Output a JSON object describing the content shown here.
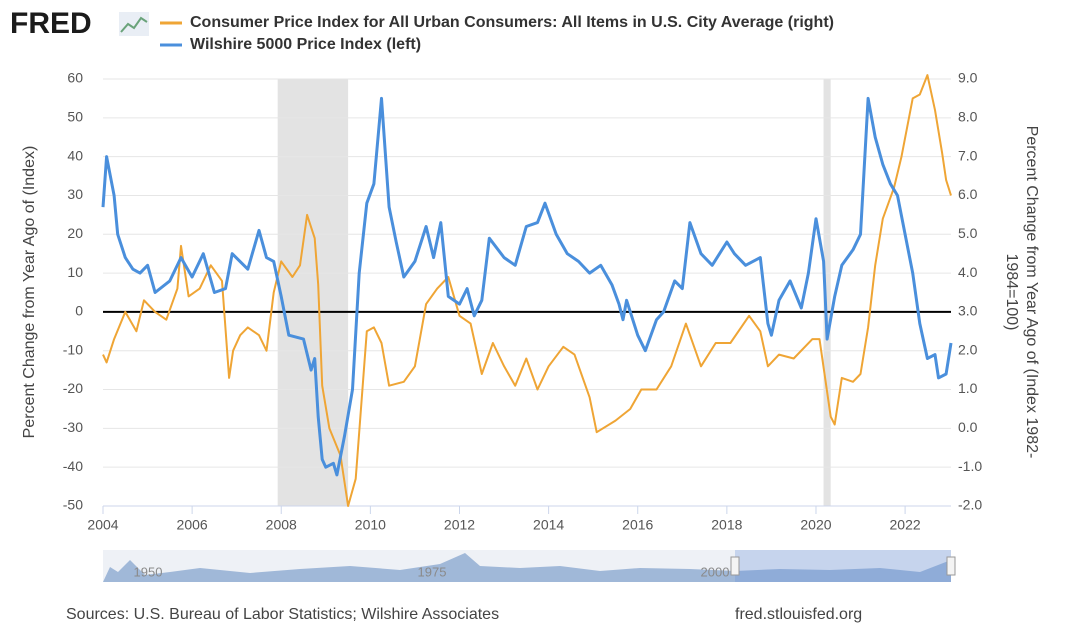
{
  "logo": "FRED",
  "chart_data": {
    "type": "line",
    "ylabel": "Percent Change from Year Ago of (Index)",
    "y2label": [
      "Percent Change from Year Ago of (Index 1982-",
      "1984=100)"
    ],
    "xlim": [
      2004,
      2023.03
    ],
    "xticks": [
      2004,
      2006,
      2008,
      2010,
      2012,
      2014,
      2016,
      2018,
      2020,
      2022
    ],
    "ylim": [
      -50,
      60
    ],
    "yticks": [
      -50,
      -40,
      -30,
      -20,
      -10,
      0,
      10,
      20,
      30,
      40,
      50,
      60
    ],
    "y2lim": [
      -2,
      9
    ],
    "y2ticks": [
      {
        "value": -2,
        "label": "-2.0"
      },
      {
        "value": -1,
        "label": "-1.0"
      },
      {
        "value": 0,
        "label": "0.0"
      },
      {
        "value": 1,
        "label": "1.0"
      },
      {
        "value": 2,
        "label": "2.0"
      },
      {
        "value": 3,
        "label": "3.0"
      },
      {
        "value": 4,
        "label": "4.0"
      },
      {
        "value": 5,
        "label": "5.0"
      },
      {
        "value": 6,
        "label": "6.0"
      },
      {
        "value": 7,
        "label": "7.0"
      },
      {
        "value": 8,
        "label": "8.0"
      },
      {
        "value": 9,
        "label": "9.0"
      }
    ],
    "grid": true,
    "zero_line": true,
    "shaded_periods": [
      [
        2007.92,
        2009.5
      ],
      [
        2020.17,
        2020.33
      ]
    ],
    "series": [
      {
        "name": "Consumer Price Index for All Urban Consumers: All Items in U.S. City Average (right)",
        "color": "#efa535",
        "axis": "y2",
        "x": [
          2004.0,
          2004.08,
          2004.25,
          2004.5,
          2004.75,
          2004.92,
          2005.17,
          2005.42,
          2005.67,
          2005.75,
          2005.92,
          2006.17,
          2006.42,
          2006.67,
          2006.83,
          2006.92,
          2007.08,
          2007.25,
          2007.5,
          2007.67,
          2007.83,
          2008.0,
          2008.25,
          2008.42,
          2008.58,
          2008.75,
          2008.83,
          2008.92,
          2009.08,
          2009.33,
          2009.5,
          2009.67,
          2009.92,
          2010.08,
          2010.25,
          2010.42,
          2010.75,
          2011.0,
          2011.25,
          2011.5,
          2011.75,
          2012.0,
          2012.25,
          2012.5,
          2012.75,
          2013.0,
          2013.25,
          2013.5,
          2013.75,
          2014.0,
          2014.33,
          2014.58,
          2014.92,
          2015.08,
          2015.5,
          2015.83,
          2016.08,
          2016.42,
          2016.75,
          2017.08,
          2017.42,
          2017.75,
          2018.08,
          2018.5,
          2018.75,
          2018.92,
          2019.17,
          2019.5,
          2019.92,
          2020.08,
          2020.33,
          2020.42,
          2020.58,
          2020.83,
          2021.0,
          2021.17,
          2021.33,
          2021.5,
          2021.75,
          2021.92,
          2022.17,
          2022.33,
          2022.5,
          2022.67,
          2022.83,
          2022.92,
          2023.03
        ],
        "values": [
          1.9,
          1.7,
          2.3,
          3.0,
          2.5,
          3.3,
          3.0,
          2.8,
          3.6,
          4.7,
          3.4,
          3.6,
          4.2,
          3.8,
          1.3,
          2.0,
          2.4,
          2.6,
          2.4,
          2.0,
          3.5,
          4.3,
          3.9,
          4.2,
          5.5,
          4.9,
          3.7,
          1.1,
          0.0,
          -0.7,
          -2.0,
          -1.3,
          2.5,
          2.6,
          2.2,
          1.1,
          1.2,
          1.6,
          3.2,
          3.6,
          3.9,
          2.9,
          2.7,
          1.4,
          2.2,
          1.6,
          1.1,
          1.8,
          1.0,
          1.6,
          2.1,
          1.9,
          0.8,
          -0.1,
          0.2,
          0.5,
          1.0,
          1.0,
          1.6,
          2.7,
          1.6,
          2.2,
          2.2,
          2.9,
          2.5,
          1.6,
          1.9,
          1.8,
          2.3,
          2.3,
          0.3,
          0.1,
          1.3,
          1.2,
          1.4,
          2.6,
          4.2,
          5.4,
          6.2,
          7.0,
          8.5,
          8.6,
          9.1,
          8.2,
          7.1,
          6.4,
          6.0
        ]
      },
      {
        "name": "Wilshire 5000 Price Index (left)",
        "color": "#4a8fdc",
        "x": [
          2004.0,
          2004.08,
          2004.25,
          2004.33,
          2004.5,
          2004.67,
          2004.83,
          2005.0,
          2005.17,
          2005.5,
          2005.75,
          2006.0,
          2006.25,
          2006.5,
          2006.75,
          2006.9,
          2007.25,
          2007.5,
          2007.67,
          2007.83,
          2008.0,
          2008.17,
          2008.5,
          2008.67,
          2008.75,
          2008.83,
          2008.92,
          2009.0,
          2009.17,
          2009.25,
          2009.42,
          2009.6,
          2009.75,
          2009.92,
          2010.08,
          2010.25,
          2010.42,
          2010.58,
          2010.75,
          2011.0,
          2011.25,
          2011.42,
          2011.58,
          2011.75,
          2012.0,
          2012.17,
          2012.33,
          2012.5,
          2012.67,
          2013.0,
          2013.25,
          2013.5,
          2013.75,
          2013.92,
          2014.17,
          2014.42,
          2014.67,
          2014.92,
          2015.17,
          2015.42,
          2015.58,
          2015.67,
          2015.75,
          2016.0,
          2016.17,
          2016.42,
          2016.58,
          2016.83,
          2017.0,
          2017.17,
          2017.42,
          2017.67,
          2018.0,
          2018.17,
          2018.42,
          2018.75,
          2018.92,
          2019.0,
          2019.17,
          2019.42,
          2019.67,
          2019.83,
          2020.0,
          2020.17,
          2020.25,
          2020.42,
          2020.58,
          2020.83,
          2021.0,
          2021.17,
          2021.33,
          2021.5,
          2021.67,
          2021.83,
          2022.0,
          2022.17,
          2022.33,
          2022.5,
          2022.67,
          2022.75,
          2022.92,
          2023.03
        ],
        "values": [
          27,
          40,
          30,
          20,
          14,
          11,
          10,
          12,
          5,
          8,
          14,
          9,
          15,
          5,
          6,
          15,
          11,
          21,
          14,
          13,
          4,
          -6,
          -7,
          -15,
          -12,
          -27,
          -38,
          -40,
          -39,
          -42,
          -32,
          -20,
          10,
          28,
          33,
          55,
          27,
          18,
          9,
          13,
          22,
          14,
          23,
          4,
          2,
          6,
          -1,
          3,
          19,
          14,
          12,
          22,
          23,
          28,
          20,
          15,
          13,
          10,
          12,
          7,
          2,
          -2,
          3,
          -6,
          -10,
          -2,
          0,
          8,
          6,
          23,
          15,
          12,
          18,
          15,
          12,
          14,
          -3,
          -6,
          3,
          8,
          1,
          10,
          24,
          13,
          -7,
          4,
          12,
          16,
          20,
          55,
          45,
          38,
          33,
          30,
          20,
          10,
          -3,
          -12,
          -11,
          -17,
          -16,
          -8
        ]
      }
    ]
  },
  "navigator": {
    "labels": [
      "1950",
      "1975",
      "2000"
    ]
  },
  "footer": {
    "sources": "Sources: U.S. Bureau of Labor Statistics; Wilshire Associates",
    "site": "fred.stlouisfed.org"
  }
}
